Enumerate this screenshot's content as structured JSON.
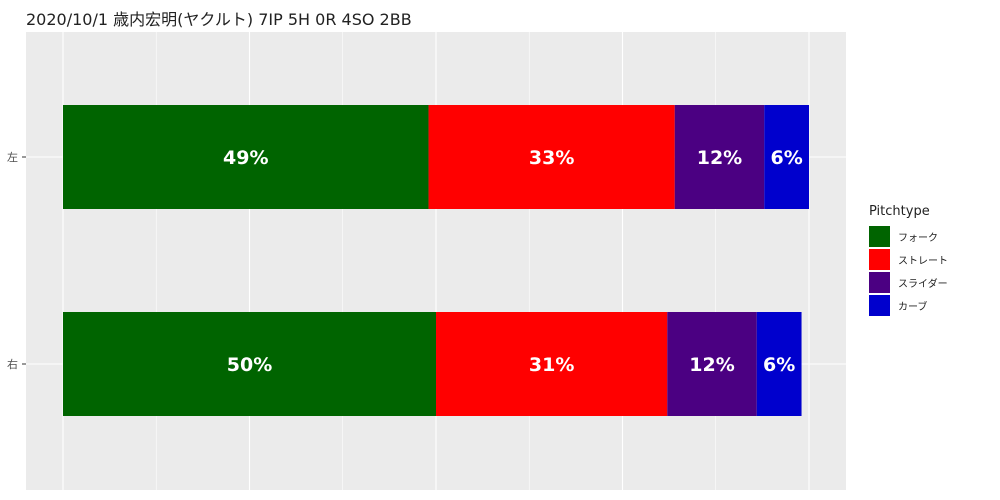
{
  "chart_data": {
    "type": "bar",
    "orientation": "horizontal",
    "stacked": true,
    "title": "2020/10/1 歳内宏明(ヤクルト) 7IP 5H 0R 4SO 2BB",
    "categories": [
      "左",
      "右"
    ],
    "xlim": [
      0,
      1
    ],
    "grid": true,
    "legend": {
      "title": "Pitchtype",
      "placement": "right"
    },
    "series": [
      {
        "name": "フォーク",
        "color": "#006400",
        "values": [
          0.49,
          0.5
        ],
        "labels": [
          "49%",
          "50%"
        ]
      },
      {
        "name": "ストレート",
        "color": "#FF0000",
        "values": [
          0.33,
          0.31
        ],
        "labels": [
          "33%",
          "31%"
        ]
      },
      {
        "name": "スライダー",
        "color": "#4B0082",
        "values": [
          0.12,
          0.12
        ],
        "labels": [
          "12%",
          "12%"
        ]
      },
      {
        "name": "カーブ",
        "color": "#0000CD",
        "values": [
          0.06,
          0.06
        ],
        "labels": [
          "6%",
          "6%"
        ]
      }
    ]
  }
}
